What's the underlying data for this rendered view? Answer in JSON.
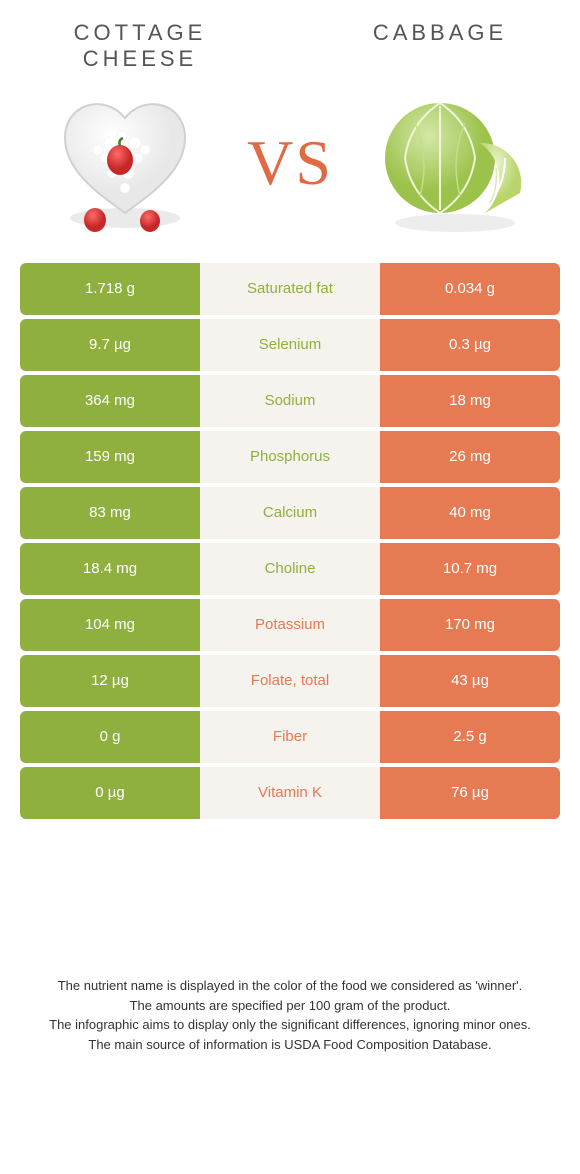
{
  "header": {
    "left_title": "COTTAGE CHEESE",
    "right_title": "CABBAGE",
    "vs": "VS"
  },
  "colors": {
    "left": "#8fb03e",
    "right": "#e57a53",
    "mid_bg": "#f6f3ee",
    "left_text": "#8fb03e",
    "right_text": "#e57a53"
  },
  "rows": [
    {
      "left": "1.718 g",
      "label": "Saturated fat",
      "right": "0.034 g",
      "winner": "left"
    },
    {
      "left": "9.7 µg",
      "label": "Selenium",
      "right": "0.3 µg",
      "winner": "left"
    },
    {
      "left": "364 mg",
      "label": "Sodium",
      "right": "18 mg",
      "winner": "left"
    },
    {
      "left": "159 mg",
      "label": "Phosphorus",
      "right": "26 mg",
      "winner": "left"
    },
    {
      "left": "83 mg",
      "label": "Calcium",
      "right": "40 mg",
      "winner": "left"
    },
    {
      "left": "18.4 mg",
      "label": "Choline",
      "right": "10.7 mg",
      "winner": "left"
    },
    {
      "left": "104 mg",
      "label": "Potassium",
      "right": "170 mg",
      "winner": "right"
    },
    {
      "left": "12 µg",
      "label": "Folate, total",
      "right": "43 µg",
      "winner": "right"
    },
    {
      "left": "0 g",
      "label": "Fiber",
      "right": "2.5 g",
      "winner": "right"
    },
    {
      "left": "0 µg",
      "label": "Vitamin K",
      "right": "76 µg",
      "winner": "right"
    }
  ],
  "footer": {
    "line1": "The nutrient name is displayed in the color of the food we considered as 'winner'.",
    "line2": "The amounts are specified per 100 gram of the product.",
    "line3": "The infographic aims to display only the significant differences, ignoring minor ones.",
    "line4": "The main source of information is USDA Food Composition Database."
  }
}
